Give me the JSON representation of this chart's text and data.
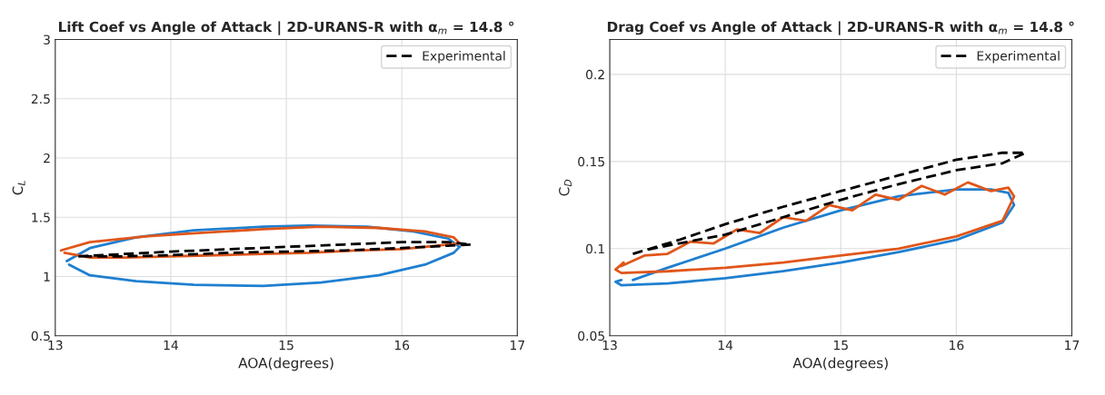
{
  "chart_data": [
    {
      "type": "line",
      "title": "Lift Coef vs Angle of Attack | 2D-URANS-R with α$_{m}$ = 14.8 °",
      "xlabel": "AOA(degrees)",
      "ylabel": "C$_{L}$",
      "xlim": [
        13,
        17
      ],
      "ylim": [
        0.5,
        3
      ],
      "xticks": [
        13,
        14,
        15,
        16,
        17
      ],
      "yticks": [
        0.5,
        1,
        1.5,
        2,
        2.5,
        3
      ],
      "grid": true,
      "legend": "top right",
      "series": [
        {
          "color": "#1f7fd0",
          "line_style": "solid",
          "x": [
            13.1,
            13.3,
            13.7,
            14.2,
            14.8,
            15.2,
            15.7,
            16.1,
            16.4,
            16.5,
            16.45,
            16.2,
            15.8,
            15.3,
            14.8,
            14.2,
            13.7,
            13.3,
            13.12
          ],
          "values": [
            1.13,
            1.24,
            1.33,
            1.39,
            1.42,
            1.43,
            1.42,
            1.38,
            1.32,
            1.25,
            1.2,
            1.1,
            1.01,
            0.95,
            0.92,
            0.93,
            0.96,
            1.01,
            1.1
          ]
        },
        {
          "color": "#e0561a",
          "line_style": "solid",
          "x": [
            13.05,
            13.3,
            13.8,
            14.3,
            14.8,
            15.3,
            15.8,
            16.2,
            16.45,
            16.5,
            16.3,
            16.0,
            15.6,
            15.2,
            14.8,
            14.4,
            14.0,
            13.6,
            13.3,
            13.08
          ],
          "values": [
            1.22,
            1.29,
            1.34,
            1.37,
            1.4,
            1.42,
            1.41,
            1.38,
            1.33,
            1.28,
            1.26,
            1.23,
            1.22,
            1.2,
            1.19,
            1.18,
            1.17,
            1.16,
            1.16,
            1.2
          ]
        },
        {
          "name": "Experimental",
          "color": "#000000",
          "line_style": "dashed",
          "x": [
            13.2,
            13.6,
            14.0,
            14.5,
            15.0,
            15.5,
            16.0,
            16.4,
            16.6,
            16.4,
            16.0,
            15.5,
            15.0,
            14.5,
            14.0,
            13.6,
            13.25
          ],
          "values": [
            1.17,
            1.19,
            1.21,
            1.23,
            1.25,
            1.27,
            1.29,
            1.29,
            1.27,
            1.26,
            1.24,
            1.22,
            1.21,
            1.2,
            1.18,
            1.17,
            1.17
          ]
        }
      ]
    },
    {
      "type": "line",
      "title": "Drag Coef vs Angle of Attack | 2D-URANS-R with α$_{m}$ = 14.8 °",
      "xlabel": "AOA(degrees)",
      "ylabel": "C$_{D}$",
      "xlim": [
        13,
        17
      ],
      "ylim": [
        0.05,
        0.22
      ],
      "xticks": [
        13,
        14,
        15,
        16,
        17
      ],
      "yticks": [
        0.05,
        0.1,
        0.15,
        0.2
      ],
      "grid": true,
      "legend": "top right",
      "series": [
        {
          "color": "#1f7fd0",
          "line_style": "solid",
          "x": [
            13.2,
            13.5,
            14.0,
            14.5,
            15.0,
            15.5,
            16.0,
            16.3,
            16.45,
            16.5,
            16.4,
            16.0,
            15.5,
            15.0,
            14.5,
            14.0,
            13.5,
            13.1,
            13.05,
            13.1
          ],
          "values": [
            0.082,
            0.089,
            0.1,
            0.112,
            0.122,
            0.13,
            0.134,
            0.134,
            0.132,
            0.125,
            0.115,
            0.105,
            0.098,
            0.092,
            0.087,
            0.083,
            0.08,
            0.079,
            0.081,
            0.082
          ]
        },
        {
          "color": "#e0561a",
          "line_style": "solid",
          "x": [
            13.1,
            13.3,
            13.5,
            13.7,
            13.9,
            14.1,
            14.3,
            14.5,
            14.7,
            14.9,
            15.1,
            15.3,
            15.5,
            15.7,
            15.9,
            16.1,
            16.3,
            16.45,
            16.5,
            16.4,
            16.0,
            15.5,
            15.0,
            14.5,
            14.0,
            13.5,
            13.1,
            13.05,
            13.12
          ],
          "values": [
            0.09,
            0.096,
            0.097,
            0.104,
            0.103,
            0.111,
            0.109,
            0.118,
            0.116,
            0.125,
            0.122,
            0.131,
            0.128,
            0.136,
            0.131,
            0.138,
            0.133,
            0.135,
            0.13,
            0.116,
            0.107,
            0.1,
            0.096,
            0.092,
            0.089,
            0.087,
            0.086,
            0.088,
            0.092
          ]
        },
        {
          "name": "Experimental",
          "color": "#000000",
          "line_style": "dashed",
          "x": [
            13.2,
            13.6,
            14.0,
            14.5,
            15.0,
            15.5,
            16.0,
            16.4,
            16.6,
            16.4,
            16.0,
            15.5,
            15.0,
            14.5,
            14.0,
            13.6,
            13.3
          ],
          "values": [
            0.097,
            0.105,
            0.114,
            0.124,
            0.133,
            0.142,
            0.151,
            0.155,
            0.155,
            0.149,
            0.145,
            0.137,
            0.128,
            0.118,
            0.108,
            0.103,
            0.099
          ]
        }
      ]
    }
  ]
}
